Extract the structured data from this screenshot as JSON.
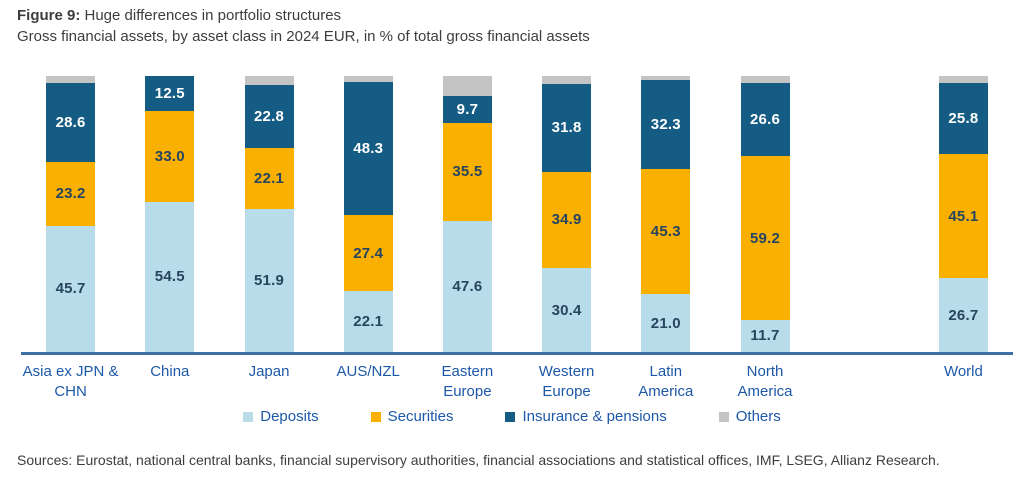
{
  "header": {
    "figure_label": "Figure 9:",
    "title": " Huge differences in portfolio structures",
    "subtitle": "Gross financial assets, by asset class in 2024 EUR, in % of total gross financial assets"
  },
  "chart_data": {
    "type": "bar",
    "stacked": true,
    "title": "Figure 9: Huge differences in portfolio structures",
    "subtitle": "Gross financial assets, by asset class in 2024 EUR, in % of total gross financial assets",
    "categories": [
      "Asia ex JPN &\nCHN",
      "China",
      "Japan",
      "AUS/NZL",
      "Eastern\nEurope",
      "Western\nEurope",
      "Latin\nAmerica",
      "North\nAmerica",
      "World"
    ],
    "category_slots": [
      0,
      1,
      2,
      3,
      4,
      5,
      6,
      7,
      9
    ],
    "total_slots": 10,
    "series": [
      {
        "name": "Deposits",
        "color": "#b8dce9",
        "label_color": "#27455f",
        "show_labels": true,
        "values": [
          45.7,
          54.5,
          51.9,
          22.1,
          47.6,
          30.4,
          21.0,
          11.7,
          26.7
        ]
      },
      {
        "name": "Securities",
        "color": "#f9b000",
        "label_color": "#27455f",
        "show_labels": true,
        "values": [
          23.2,
          33.0,
          22.1,
          27.4,
          35.5,
          34.9,
          45.3,
          59.2,
          45.1
        ]
      },
      {
        "name": "Insurance & pensions",
        "color": "#155c84",
        "label_color": "#ffffff",
        "show_labels": true,
        "values": [
          28.6,
          12.5,
          22.8,
          48.3,
          9.7,
          31.8,
          32.3,
          26.6,
          25.8
        ]
      },
      {
        "name": "Others",
        "color": "#c4c4c4",
        "label_color": "#27455f",
        "show_labels": false,
        "values": [
          2.5,
          0.0,
          3.2,
          2.2,
          7.2,
          2.9,
          1.4,
          2.5,
          2.4
        ]
      }
    ],
    "ylim": [
      0,
      100
    ],
    "grid": false,
    "legend_position": "bottom",
    "axis_line_color": "#3d6fa5",
    "category_label_color": "#1d58a8"
  },
  "footer": {
    "sources": "Sources: Eurostat, national central banks, financial supervisory authorities, financial associations and statistical offices, IMF, LSEG, Allianz Research."
  }
}
